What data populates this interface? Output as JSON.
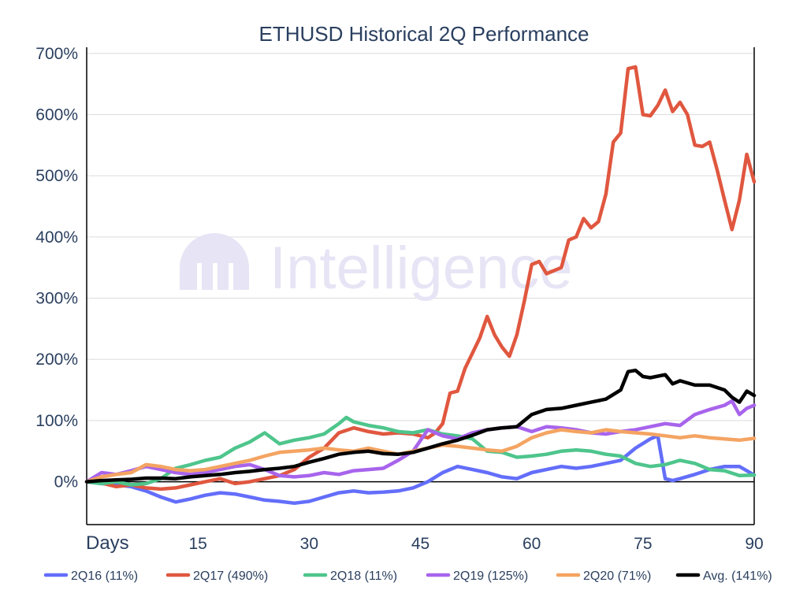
{
  "watermark": "Intelligence",
  "chart_data": {
    "type": "line",
    "title": "ETHUSD Historical 2Q Performance",
    "xlabel": "Days",
    "ylabel": "",
    "xlim": [
      0,
      90
    ],
    "ylim": [
      -70,
      710
    ],
    "x_ticks": [
      15,
      30,
      45,
      60,
      75,
      90
    ],
    "y_ticks": [
      0,
      100,
      200,
      300,
      400,
      500,
      600,
      700
    ],
    "y_tick_format": "percent",
    "grid": "horizontal",
    "legend_position": "bottom",
    "series": [
      {
        "name": "2Q16 (11%)",
        "color": "#636efa",
        "points": [
          [
            0,
            0
          ],
          [
            2,
            -3
          ],
          [
            4,
            -5
          ],
          [
            6,
            -8
          ],
          [
            8,
            -15
          ],
          [
            10,
            -25
          ],
          [
            12,
            -33
          ],
          [
            14,
            -28
          ],
          [
            16,
            -22
          ],
          [
            18,
            -18
          ],
          [
            20,
            -20
          ],
          [
            22,
            -25
          ],
          [
            24,
            -30
          ],
          [
            26,
            -32
          ],
          [
            28,
            -35
          ],
          [
            30,
            -32
          ],
          [
            32,
            -25
          ],
          [
            34,
            -18
          ],
          [
            36,
            -15
          ],
          [
            38,
            -18
          ],
          [
            40,
            -17
          ],
          [
            42,
            -15
          ],
          [
            44,
            -10
          ],
          [
            46,
            0
          ],
          [
            48,
            15
          ],
          [
            50,
            25
          ],
          [
            52,
            20
          ],
          [
            54,
            15
          ],
          [
            56,
            8
          ],
          [
            58,
            5
          ],
          [
            60,
            15
          ],
          [
            62,
            20
          ],
          [
            64,
            25
          ],
          [
            66,
            22
          ],
          [
            68,
            25
          ],
          [
            70,
            30
          ],
          [
            72,
            35
          ],
          [
            74,
            55
          ],
          [
            76,
            70
          ],
          [
            77,
            75
          ],
          [
            78,
            5
          ],
          [
            79,
            2
          ],
          [
            80,
            5
          ],
          [
            82,
            12
          ],
          [
            84,
            20
          ],
          [
            86,
            25
          ],
          [
            88,
            25
          ],
          [
            90,
            11
          ]
        ]
      },
      {
        "name": "2Q17 (490%)",
        "color": "#e0573f",
        "points": [
          [
            0,
            0
          ],
          [
            2,
            -2
          ],
          [
            4,
            -8
          ],
          [
            6,
            -5
          ],
          [
            8,
            -10
          ],
          [
            10,
            -12
          ],
          [
            12,
            -10
          ],
          [
            14,
            -5
          ],
          [
            16,
            0
          ],
          [
            18,
            5
          ],
          [
            20,
            -3
          ],
          [
            22,
            0
          ],
          [
            24,
            5
          ],
          [
            26,
            10
          ],
          [
            28,
            20
          ],
          [
            30,
            40
          ],
          [
            32,
            55
          ],
          [
            34,
            80
          ],
          [
            36,
            88
          ],
          [
            38,
            82
          ],
          [
            40,
            78
          ],
          [
            42,
            80
          ],
          [
            44,
            78
          ],
          [
            46,
            72
          ],
          [
            47,
            80
          ],
          [
            48,
            95
          ],
          [
            49,
            145
          ],
          [
            50,
            148
          ],
          [
            51,
            185
          ],
          [
            52,
            210
          ],
          [
            53,
            235
          ],
          [
            54,
            270
          ],
          [
            55,
            240
          ],
          [
            56,
            220
          ],
          [
            57,
            205
          ],
          [
            58,
            240
          ],
          [
            59,
            295
          ],
          [
            60,
            355
          ],
          [
            61,
            360
          ],
          [
            62,
            340
          ],
          [
            63,
            345
          ],
          [
            64,
            350
          ],
          [
            65,
            395
          ],
          [
            66,
            400
          ],
          [
            67,
            430
          ],
          [
            68,
            415
          ],
          [
            69,
            425
          ],
          [
            70,
            470
          ],
          [
            71,
            555
          ],
          [
            72,
            570
          ],
          [
            73,
            675
          ],
          [
            74,
            678
          ],
          [
            75,
            600
          ],
          [
            76,
            598
          ],
          [
            77,
            615
          ],
          [
            78,
            640
          ],
          [
            79,
            605
          ],
          [
            80,
            620
          ],
          [
            81,
            600
          ],
          [
            82,
            550
          ],
          [
            83,
            548
          ],
          [
            84,
            555
          ],
          [
            85,
            510
          ],
          [
            86,
            460
          ],
          [
            87,
            412
          ],
          [
            88,
            460
          ],
          [
            89,
            535
          ],
          [
            90,
            490
          ]
        ]
      },
      {
        "name": "2Q18 (11%)",
        "color": "#4ec58c",
        "points": [
          [
            0,
            0
          ],
          [
            2,
            -3
          ],
          [
            4,
            0
          ],
          [
            6,
            -5
          ],
          [
            8,
            -3
          ],
          [
            10,
            5
          ],
          [
            12,
            22
          ],
          [
            14,
            28
          ],
          [
            16,
            35
          ],
          [
            18,
            40
          ],
          [
            20,
            55
          ],
          [
            22,
            65
          ],
          [
            24,
            80
          ],
          [
            26,
            62
          ],
          [
            28,
            68
          ],
          [
            30,
            72
          ],
          [
            32,
            78
          ],
          [
            34,
            95
          ],
          [
            35,
            105
          ],
          [
            36,
            98
          ],
          [
            38,
            92
          ],
          [
            40,
            88
          ],
          [
            42,
            82
          ],
          [
            44,
            80
          ],
          [
            46,
            85
          ],
          [
            48,
            78
          ],
          [
            50,
            75
          ],
          [
            52,
            70
          ],
          [
            54,
            50
          ],
          [
            56,
            48
          ],
          [
            58,
            40
          ],
          [
            60,
            42
          ],
          [
            62,
            45
          ],
          [
            64,
            50
          ],
          [
            66,
            52
          ],
          [
            68,
            50
          ],
          [
            70,
            45
          ],
          [
            72,
            42
          ],
          [
            74,
            30
          ],
          [
            76,
            25
          ],
          [
            78,
            28
          ],
          [
            80,
            35
          ],
          [
            82,
            30
          ],
          [
            84,
            20
          ],
          [
            86,
            18
          ],
          [
            88,
            10
          ],
          [
            90,
            11
          ]
        ]
      },
      {
        "name": "2Q19 (125%)",
        "color": "#a864ec",
        "points": [
          [
            0,
            0
          ],
          [
            2,
            15
          ],
          [
            4,
            12
          ],
          [
            6,
            18
          ],
          [
            8,
            25
          ],
          [
            10,
            20
          ],
          [
            12,
            15
          ],
          [
            14,
            12
          ],
          [
            16,
            15
          ],
          [
            18,
            20
          ],
          [
            20,
            25
          ],
          [
            22,
            28
          ],
          [
            24,
            20
          ],
          [
            26,
            10
          ],
          [
            28,
            8
          ],
          [
            30,
            10
          ],
          [
            32,
            15
          ],
          [
            34,
            12
          ],
          [
            36,
            18
          ],
          [
            38,
            20
          ],
          [
            40,
            22
          ],
          [
            42,
            35
          ],
          [
            44,
            50
          ],
          [
            46,
            85
          ],
          [
            48,
            75
          ],
          [
            50,
            70
          ],
          [
            52,
            80
          ],
          [
            54,
            85
          ],
          [
            56,
            88
          ],
          [
            58,
            90
          ],
          [
            60,
            82
          ],
          [
            62,
            90
          ],
          [
            64,
            88
          ],
          [
            66,
            85
          ],
          [
            68,
            80
          ],
          [
            70,
            78
          ],
          [
            72,
            82
          ],
          [
            74,
            85
          ],
          [
            76,
            90
          ],
          [
            78,
            95
          ],
          [
            80,
            92
          ],
          [
            82,
            110
          ],
          [
            84,
            118
          ],
          [
            86,
            125
          ],
          [
            87,
            132
          ],
          [
            88,
            110
          ],
          [
            89,
            120
          ],
          [
            90,
            125
          ]
        ]
      },
      {
        "name": "2Q20 (71%)",
        "color": "#f4a462",
        "points": [
          [
            0,
            0
          ],
          [
            2,
            8
          ],
          [
            4,
            12
          ],
          [
            6,
            15
          ],
          [
            8,
            28
          ],
          [
            10,
            25
          ],
          [
            12,
            20
          ],
          [
            14,
            18
          ],
          [
            16,
            20
          ],
          [
            18,
            25
          ],
          [
            20,
            30
          ],
          [
            22,
            35
          ],
          [
            24,
            42
          ],
          [
            26,
            48
          ],
          [
            28,
            50
          ],
          [
            30,
            52
          ],
          [
            32,
            55
          ],
          [
            34,
            52
          ],
          [
            36,
            50
          ],
          [
            38,
            55
          ],
          [
            40,
            50
          ],
          [
            42,
            45
          ],
          [
            44,
            50
          ],
          [
            46,
            55
          ],
          [
            48,
            60
          ],
          [
            50,
            58
          ],
          [
            52,
            55
          ],
          [
            54,
            52
          ],
          [
            56,
            50
          ],
          [
            58,
            58
          ],
          [
            60,
            72
          ],
          [
            62,
            80
          ],
          [
            64,
            85
          ],
          [
            66,
            82
          ],
          [
            68,
            80
          ],
          [
            70,
            85
          ],
          [
            72,
            82
          ],
          [
            74,
            80
          ],
          [
            76,
            78
          ],
          [
            78,
            75
          ],
          [
            80,
            72
          ],
          [
            82,
            75
          ],
          [
            84,
            72
          ],
          [
            86,
            70
          ],
          [
            88,
            68
          ],
          [
            90,
            71
          ]
        ]
      },
      {
        "name": "Avg. (141%)",
        "color": "#000000",
        "points": [
          [
            0,
            0
          ],
          [
            2,
            2
          ],
          [
            4,
            3
          ],
          [
            6,
            4
          ],
          [
            8,
            6
          ],
          [
            10,
            6
          ],
          [
            12,
            5
          ],
          [
            14,
            8
          ],
          [
            16,
            10
          ],
          [
            18,
            12
          ],
          [
            20,
            15
          ],
          [
            22,
            17
          ],
          [
            24,
            20
          ],
          [
            26,
            22
          ],
          [
            28,
            25
          ],
          [
            30,
            32
          ],
          [
            32,
            38
          ],
          [
            34,
            45
          ],
          [
            36,
            48
          ],
          [
            38,
            50
          ],
          [
            40,
            46
          ],
          [
            42,
            45
          ],
          [
            44,
            48
          ],
          [
            46,
            55
          ],
          [
            48,
            62
          ],
          [
            50,
            68
          ],
          [
            52,
            76
          ],
          [
            54,
            85
          ],
          [
            56,
            88
          ],
          [
            58,
            90
          ],
          [
            60,
            110
          ],
          [
            62,
            118
          ],
          [
            64,
            120
          ],
          [
            66,
            125
          ],
          [
            68,
            130
          ],
          [
            70,
            135
          ],
          [
            72,
            150
          ],
          [
            73,
            180
          ],
          [
            74,
            182
          ],
          [
            75,
            172
          ],
          [
            76,
            170
          ],
          [
            78,
            175
          ],
          [
            79,
            160
          ],
          [
            80,
            165
          ],
          [
            82,
            158
          ],
          [
            84,
            158
          ],
          [
            86,
            150
          ],
          [
            87,
            138
          ],
          [
            88,
            130
          ],
          [
            89,
            148
          ],
          [
            90,
            141
          ]
        ]
      }
    ]
  }
}
